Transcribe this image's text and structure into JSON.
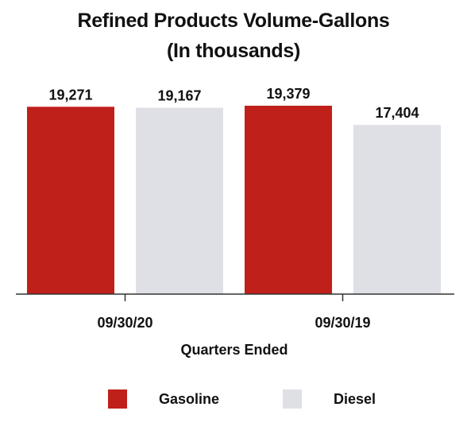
{
  "chart_data": {
    "type": "bar",
    "title": "Refined Products Volume-Gallons",
    "subtitle": "(In thousands)",
    "xlabel": "Quarters Ended",
    "ylabel": "",
    "categories": [
      "09/30/20",
      "09/30/19"
    ],
    "series": [
      {
        "name": "Gasoline",
        "color": "#c0201a",
        "values": [
          19271,
          19379
        ]
      },
      {
        "name": "Diesel",
        "color": "#dfe0e5",
        "values": [
          19167,
          17404
        ]
      }
    ],
    "value_labels": [
      [
        "19,271",
        "19,379"
      ],
      [
        "19,167",
        "17,404"
      ]
    ],
    "ylim": [
      0,
      19379
    ],
    "grid": false,
    "legend": "bottom"
  }
}
